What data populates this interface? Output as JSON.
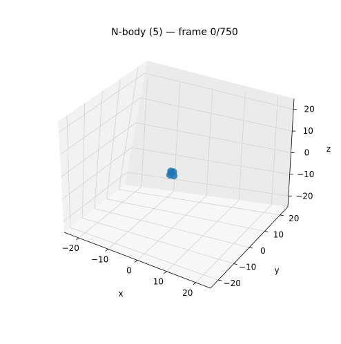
{
  "chart_data": {
    "type": "scatter",
    "title": "N-body (5) — frame 0/750",
    "xlabel": "x",
    "ylabel": "y",
    "zlabel": "z",
    "xlim": [
      -25,
      25
    ],
    "ylim": [
      -25,
      25
    ],
    "zlim": [
      -25,
      25
    ],
    "x_ticks": [
      "−20",
      "−10",
      "0",
      "10",
      "20"
    ],
    "y_ticks": [
      "−20",
      "−10",
      "0",
      "10",
      "20"
    ],
    "z_ticks": [
      "−20",
      "−10",
      "0",
      "10",
      "20"
    ],
    "grid": true,
    "series": [
      {
        "color": "#1f77b4",
        "points": [
          {
            "x": 0.3,
            "y": 0.5,
            "z": 0.4
          },
          {
            "x": 0.9,
            "y": -0.6,
            "z": -0.5
          },
          {
            "x": -0.7,
            "y": 0.8,
            "z": 0.2
          },
          {
            "x": 0.2,
            "y": -0.9,
            "z": 0.7
          },
          {
            "x": -0.5,
            "y": -0.3,
            "z": -0.8
          }
        ]
      }
    ]
  }
}
